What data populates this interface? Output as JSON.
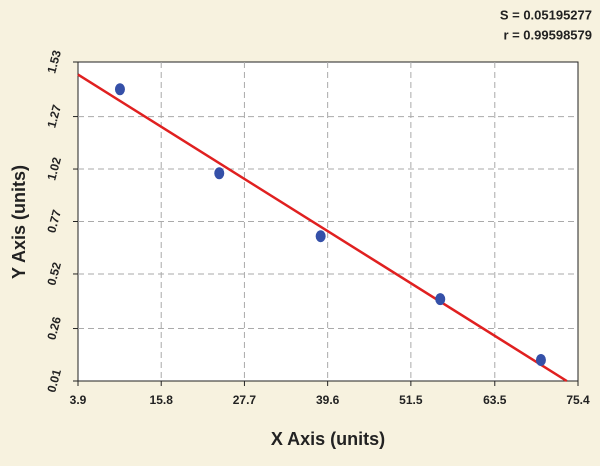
{
  "chart_data": {
    "type": "scatter",
    "annotations": [
      "S = 0.05195277",
      "r = 0.99598579"
    ],
    "x_label": "X Axis (units)",
    "y_label": "Y Axis (units)",
    "x": [
      9.9,
      24.1,
      38.6,
      55.7,
      70.1
    ],
    "values": [
      1.4,
      1.0,
      0.7,
      0.4,
      0.11
    ],
    "color": "#3550a8",
    "fit_line": {
      "x": [
        3.9,
        73.8
      ],
      "values": [
        1.47,
        0.01
      ],
      "color": "#e02020"
    },
    "xlim": [
      3.9,
      75.4
    ],
    "xticks": [
      3.9,
      15.8,
      27.7,
      39.6,
      51.5,
      63.5,
      75.4
    ],
    "ylim": [
      0.01,
      1.53
    ],
    "yticks": [
      0.01,
      0.26,
      0.52,
      0.77,
      1.02,
      1.27,
      1.53
    ],
    "grid": true
  }
}
